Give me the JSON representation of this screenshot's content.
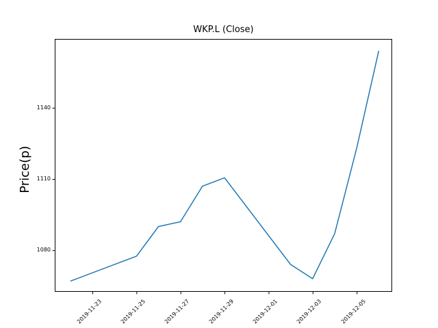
{
  "chart_data": {
    "type": "line",
    "title": "WKP.L (Close)",
    "xlabel": "",
    "ylabel": "Price(p)",
    "x": [
      "2019-11-22",
      "2019-11-25",
      "2019-11-26",
      "2019-11-27",
      "2019-11-28",
      "2019-11-29",
      "2019-12-02",
      "2019-12-03",
      "2019-12-04",
      "2019-12-05",
      "2019-12-06"
    ],
    "values": [
      1067,
      1077.5,
      1090,
      1092,
      1107,
      1110.5,
      1074,
      1068,
      1087,
      1123,
      1164
    ],
    "xtick_labels": [
      "2019-11-23",
      "2019-11-25",
      "2019-11-27",
      "2019-11-29",
      "2019-12-01",
      "2019-12-03",
      "2019-12-05"
    ],
    "ytick_labels": [
      1080,
      1110,
      1140
    ],
    "ylim": [
      1062.5,
      1169
    ],
    "xlim_days": [
      -0.71,
      14.61
    ],
    "grid": false,
    "legend": "none",
    "line_color": "#1f77b4",
    "background_color": "#ffffff",
    "text_color": "#000000",
    "axis_color": "#000000"
  }
}
